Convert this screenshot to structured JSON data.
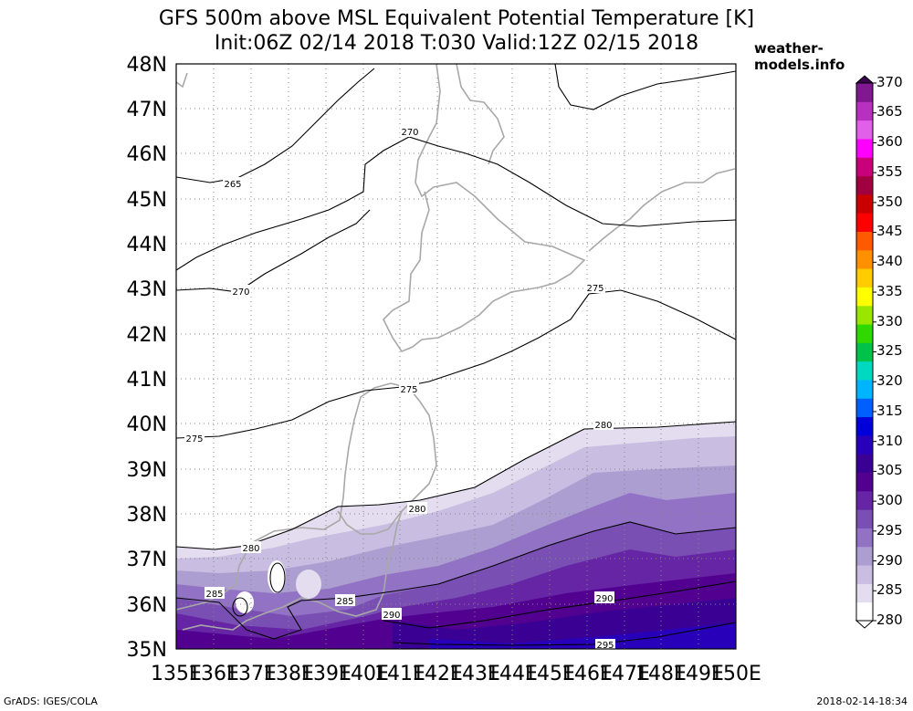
{
  "title_line1": "GFS 500m above MSL Equivalent Potential Temperature [K]",
  "title_line2": "Init:06Z 02/14 2018 T:030 Valid:12Z 02/15 2018",
  "site": "weather-models.info",
  "footer_left": "GrADS: IGES/COLA",
  "footer_right": "2018-02-14-18:34",
  "lat_labels": [
    "48N",
    "47N",
    "46N",
    "45N",
    "44N",
    "43N",
    "42N",
    "41N",
    "40N",
    "39N",
    "38N",
    "37N",
    "36N",
    "35N"
  ],
  "lon_labels": [
    "135E",
    "136E",
    "137E",
    "138E",
    "139E",
    "140E",
    "141E",
    "142E",
    "143E",
    "144E",
    "145E",
    "146E",
    "147E",
    "148E",
    "149E",
    "150E"
  ],
  "contour_labels": [
    "270",
    "265",
    "270",
    "275",
    "275",
    "275",
    "280",
    "280",
    "280",
    "285",
    "285",
    "290",
    "290",
    "295"
  ],
  "colorbar": {
    "labels": [
      "370",
      "365",
      "360",
      "355",
      "350",
      "345",
      "340",
      "335",
      "330",
      "325",
      "320",
      "315",
      "310",
      "305",
      "300",
      "295",
      "290",
      "285",
      "280"
    ],
    "colors": [
      "#ffffff",
      "#e4ddef",
      "#c9bde1",
      "#ad9ed2",
      "#9272c4",
      "#7a4fb4",
      "#6625a4",
      "#52008f",
      "#3a0094",
      "#2800b9",
      "#0000d8",
      "#0060ff",
      "#00b4ff",
      "#00d8c0",
      "#00c24a",
      "#30d800",
      "#9ae600",
      "#ffff00",
      "#ffcc00",
      "#ff9000",
      "#ff5a00",
      "#ff0000",
      "#c80000",
      "#a00040",
      "#c8007a",
      "#ff00ff",
      "#e060e8",
      "#b830c0",
      "#801890"
    ]
  }
}
